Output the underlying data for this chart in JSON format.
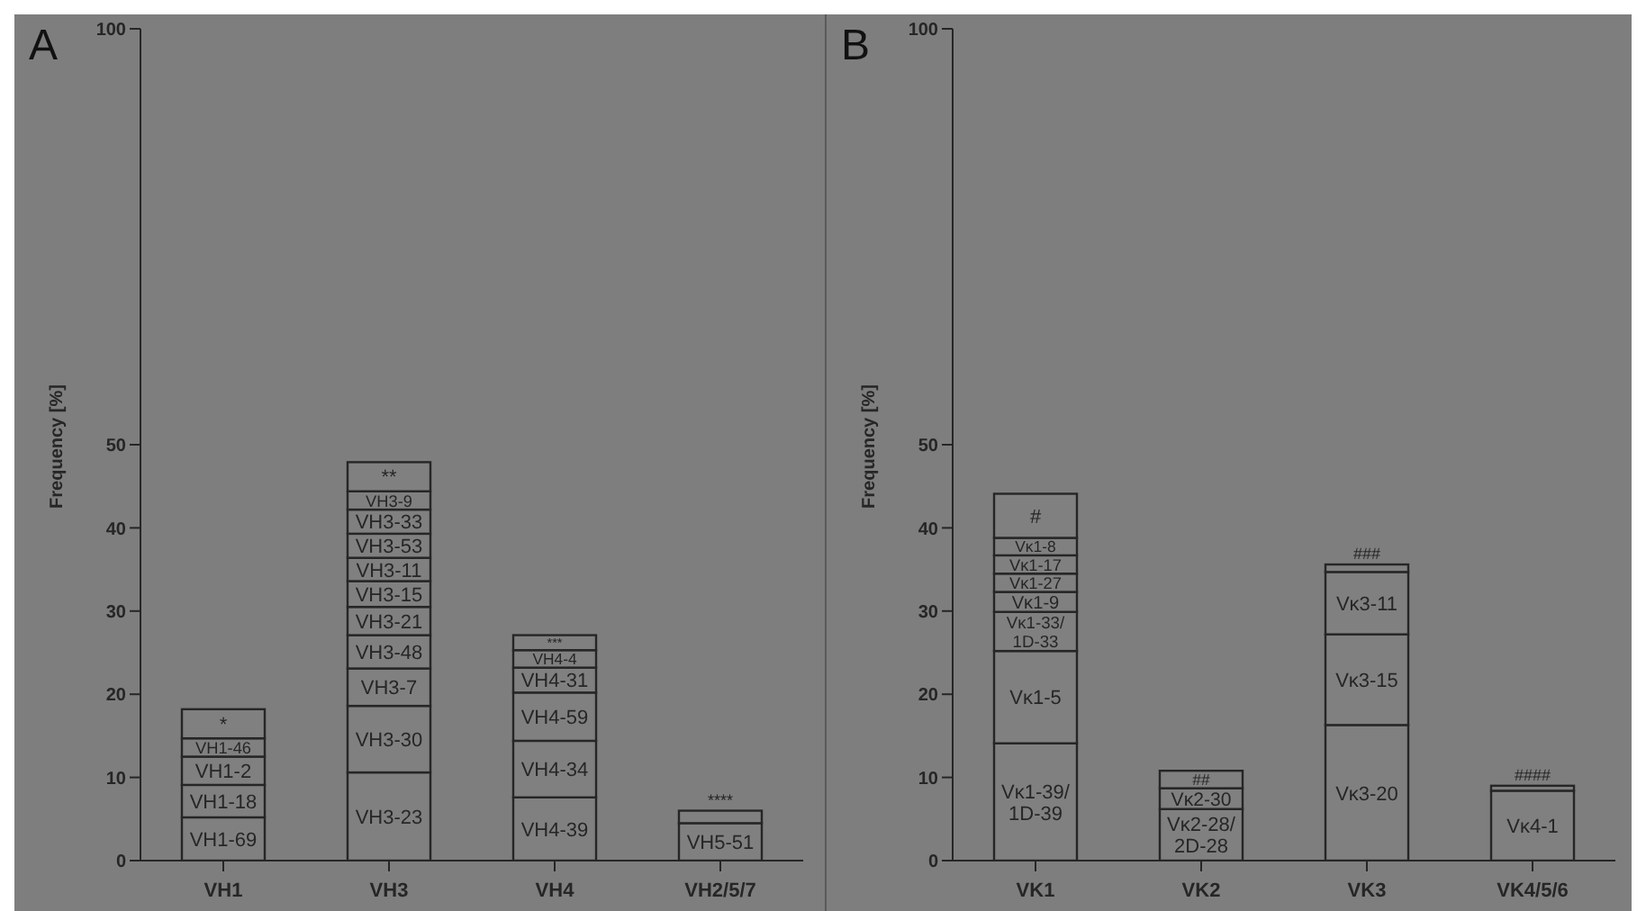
{
  "chart_data": [
    {
      "type": "bar",
      "title": "A",
      "ylabel": "Frequency [%]",
      "stacked": true,
      "legend": false,
      "grid": false,
      "categories": [
        "VH1",
        "VH3",
        "VH4",
        "VH2/5/7"
      ],
      "ylim": [
        0,
        100
      ],
      "yticks": [
        0,
        10,
        20,
        30,
        40,
        50,
        100
      ],
      "series": [
        {
          "color": "#808080",
          "values": [
            5.2,
            10.6,
            7.6,
            4.5
          ],
          "value_labels": [
            "VH1-69",
            "VH3-23",
            "VH4-39",
            "VH5-51"
          ]
        },
        {
          "color": "#808080",
          "values": [
            3.9,
            8.0,
            6.8,
            1.5
          ],
          "value_labels": [
            "VH1-18",
            "VH3-30",
            "VH4-34",
            "****"
          ]
        },
        {
          "color": "#808080",
          "values": [
            3.4,
            4.5,
            5.8,
            null
          ],
          "value_labels": [
            "VH1-2",
            "VH3-7",
            "VH4-59",
            null
          ]
        },
        {
          "color": "#808080",
          "values": [
            2.2,
            4.0,
            3.0,
            null
          ],
          "value_labels": [
            "VH1-46",
            "VH3-48",
            "VH4-31",
            null
          ]
        },
        {
          "color": "#808080",
          "values": [
            3.5,
            3.4,
            2.1,
            null
          ],
          "value_labels": [
            "*",
            "VH3-21",
            "VH4-4",
            null
          ]
        },
        {
          "color": "#808080",
          "values": [
            null,
            3.1,
            1.8,
            null
          ],
          "value_labels": [
            null,
            "VH3-15",
            "***",
            null
          ]
        },
        {
          "color": "#808080",
          "values": [
            null,
            2.8,
            null,
            null
          ],
          "value_labels": [
            null,
            "VH3-11",
            null,
            null
          ]
        },
        {
          "color": "#808080",
          "values": [
            null,
            2.9,
            null,
            null
          ],
          "value_labels": [
            null,
            "VH3-53",
            null,
            null
          ]
        },
        {
          "color": "#808080",
          "values": [
            null,
            2.9,
            null,
            null
          ],
          "value_labels": [
            null,
            "VH3-33",
            null,
            null
          ]
        },
        {
          "color": "#808080",
          "values": [
            null,
            2.2,
            null,
            null
          ],
          "value_labels": [
            null,
            "VH3-9",
            null,
            null
          ]
        },
        {
          "color": "#808080",
          "values": [
            null,
            3.5,
            null,
            null
          ],
          "value_labels": [
            null,
            "**",
            null,
            null
          ]
        }
      ]
    },
    {
      "type": "bar",
      "title": "B",
      "ylabel": "Frequency [%]",
      "stacked": true,
      "legend": false,
      "grid": false,
      "categories": [
        "VK1",
        "VK2",
        "VK3",
        "VK4/5/6"
      ],
      "ylim": [
        0,
        100
      ],
      "yticks": [
        0,
        10,
        20,
        30,
        40,
        50,
        100
      ],
      "series": [
        {
          "color": "#808080",
          "values": [
            14.1,
            6.2,
            16.3,
            8.4
          ],
          "value_labels": [
            "Vκ1-39/1D-39",
            "Vκ2-28/2D-28",
            "Vκ3-20",
            "Vκ4-1"
          ]
        },
        {
          "color": "#808080",
          "values": [
            11.1,
            2.5,
            10.9,
            0.6
          ],
          "value_labels": [
            "Vκ1-5",
            "Vκ2-30",
            "Vκ3-15",
            "####"
          ]
        },
        {
          "color": "#808080",
          "values": [
            4.7,
            2.1,
            7.5,
            null
          ],
          "value_labels": [
            "Vκ1-33/1D-33",
            "##",
            "Vκ3-11",
            null
          ]
        },
        {
          "color": "#808080",
          "values": [
            2.4,
            null,
            0.9,
            null
          ],
          "value_labels": [
            "Vκ1-9",
            null,
            "###",
            null
          ]
        },
        {
          "color": "#808080",
          "values": [
            2.2,
            null,
            null,
            null
          ],
          "value_labels": [
            "Vκ1-27",
            null,
            null,
            null
          ]
        },
        {
          "color": "#808080",
          "values": [
            2.2,
            null,
            null,
            null
          ],
          "value_labels": [
            "Vκ1-17",
            null,
            null,
            null
          ]
        },
        {
          "color": "#808080",
          "values": [
            2.1,
            null,
            null,
            null
          ],
          "value_labels": [
            "Vκ1-8",
            null,
            null,
            null
          ]
        },
        {
          "color": "#808080",
          "values": [
            5.3,
            null,
            null,
            null
          ],
          "value_labels": [
            "#",
            null,
            null,
            null
          ]
        }
      ]
    }
  ]
}
